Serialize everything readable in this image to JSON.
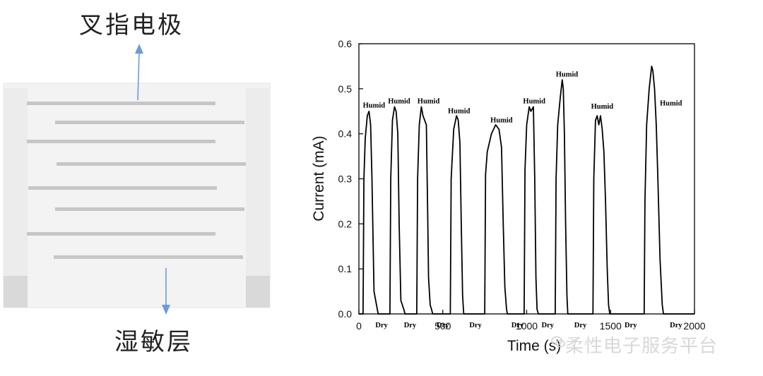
{
  "diagram": {
    "top_label": "叉指电极",
    "bottom_label": "湿敏层",
    "colors": {
      "arrow": "#6a9cd8",
      "substrate": "#f3f3f3",
      "pad": "#e4e4e4",
      "finger": "#c9c9c9"
    }
  },
  "watermark": {
    "text": "柔性电子服务平台",
    "icon": "wechat-logo-icon"
  },
  "chart_data": {
    "type": "line",
    "title": "",
    "xlabel": "Time (s)",
    "ylabel": "Current (mA)",
    "xlim": [
      0,
      2000
    ],
    "ylim": [
      0.0,
      0.6
    ],
    "xticks": [
      0,
      500,
      1000,
      1500,
      2000
    ],
    "xtick_labels": [
      "0",
      "500",
      "1000",
      "1500",
      "2000"
    ],
    "yticks": [
      0.0,
      0.1,
      0.2,
      0.3,
      0.4,
      0.5,
      0.6
    ],
    "ytick_labels": [
      "0.0",
      "0.1",
      "0.2",
      "0.3",
      "0.4",
      "0.5",
      "0.6"
    ],
    "series": [
      {
        "name": "Current",
        "x": [
          0,
          25,
          30,
          38,
          50,
          60,
          70,
          78,
          90,
          110,
          115,
          120,
          140,
          185,
          190,
          200,
          212,
          222,
          232,
          240,
          250,
          268,
          275,
          345,
          350,
          360,
          372,
          382,
          392,
          402,
          410,
          415,
          425,
          433,
          440,
          545,
          550,
          565,
          582,
          592,
          602,
          610,
          618,
          625,
          750,
          755,
          765,
          790,
          815,
          835,
          850,
          860,
          870,
          880,
          885,
          985,
          990,
          1000,
          1015,
          1025,
          1040,
          1048,
          1055,
          1062,
          1070,
          1170,
          1175,
          1185,
          1200,
          1212,
          1218,
          1225,
          1232,
          1240,
          1245,
          1395,
          1400,
          1410,
          1420,
          1430,
          1440,
          1450,
          1460,
          1470,
          1480,
          1488,
          1495,
          1700,
          1705,
          1715,
          1730,
          1745,
          1752,
          1762,
          1772,
          1782,
          1795,
          1808,
          1815,
          2000
        ],
        "y": [
          0.0,
          0.0,
          0.3,
          0.39,
          0.44,
          0.45,
          0.42,
          0.3,
          0.05,
          0.01,
          0.0,
          0.0,
          0.0,
          0.0,
          0.3,
          0.43,
          0.46,
          0.45,
          0.4,
          0.2,
          0.03,
          0.01,
          0.0,
          0.0,
          0.3,
          0.42,
          0.46,
          0.44,
          0.43,
          0.42,
          0.22,
          0.08,
          0.02,
          0.01,
          0.0,
          0.0,
          0.3,
          0.41,
          0.44,
          0.43,
          0.38,
          0.2,
          0.04,
          0.0,
          0.0,
          0.31,
          0.36,
          0.4,
          0.42,
          0.41,
          0.37,
          0.2,
          0.06,
          0.01,
          0.0,
          0.0,
          0.32,
          0.42,
          0.46,
          0.45,
          0.46,
          0.3,
          0.08,
          0.01,
          0.0,
          0.0,
          0.3,
          0.42,
          0.48,
          0.52,
          0.5,
          0.4,
          0.2,
          0.04,
          0.0,
          0.0,
          0.3,
          0.43,
          0.44,
          0.42,
          0.44,
          0.41,
          0.36,
          0.25,
          0.1,
          0.02,
          0.0,
          0.0,
          0.25,
          0.42,
          0.5,
          0.55,
          0.54,
          0.5,
          0.42,
          0.3,
          0.12,
          0.02,
          0.0,
          0.0
        ]
      }
    ],
    "annotations": [
      {
        "text": "Humid",
        "x": 90,
        "y": 0.458
      },
      {
        "text": "Humid",
        "x": 240,
        "y": 0.468
      },
      {
        "text": "Humid",
        "x": 415,
        "y": 0.468
      },
      {
        "text": "Humid",
        "x": 597,
        "y": 0.446
      },
      {
        "text": "Humid",
        "x": 850,
        "y": 0.425
      },
      {
        "text": "Humid",
        "x": 1045,
        "y": 0.468
      },
      {
        "text": "Humid",
        "x": 1240,
        "y": 0.527
      },
      {
        "text": "Humid",
        "x": 1450,
        "y": 0.456
      },
      {
        "text": "Humid",
        "x": 1860,
        "y": 0.463
      },
      {
        "text": "Dry",
        "x": 135,
        "y": -0.03
      },
      {
        "text": "Dry",
        "x": 305,
        "y": -0.03
      },
      {
        "text": "Dry",
        "x": 500,
        "y": -0.03
      },
      {
        "text": "Dry",
        "x": 695,
        "y": -0.03
      },
      {
        "text": "Dry",
        "x": 945,
        "y": -0.03
      },
      {
        "text": "Dry",
        "x": 1125,
        "y": -0.03
      },
      {
        "text": "Dry",
        "x": 1320,
        "y": -0.03
      },
      {
        "text": "Dry",
        "x": 1620,
        "y": -0.03
      },
      {
        "text": "Dry",
        "x": 1890,
        "y": -0.03
      }
    ],
    "grid": false,
    "legend": "none"
  }
}
